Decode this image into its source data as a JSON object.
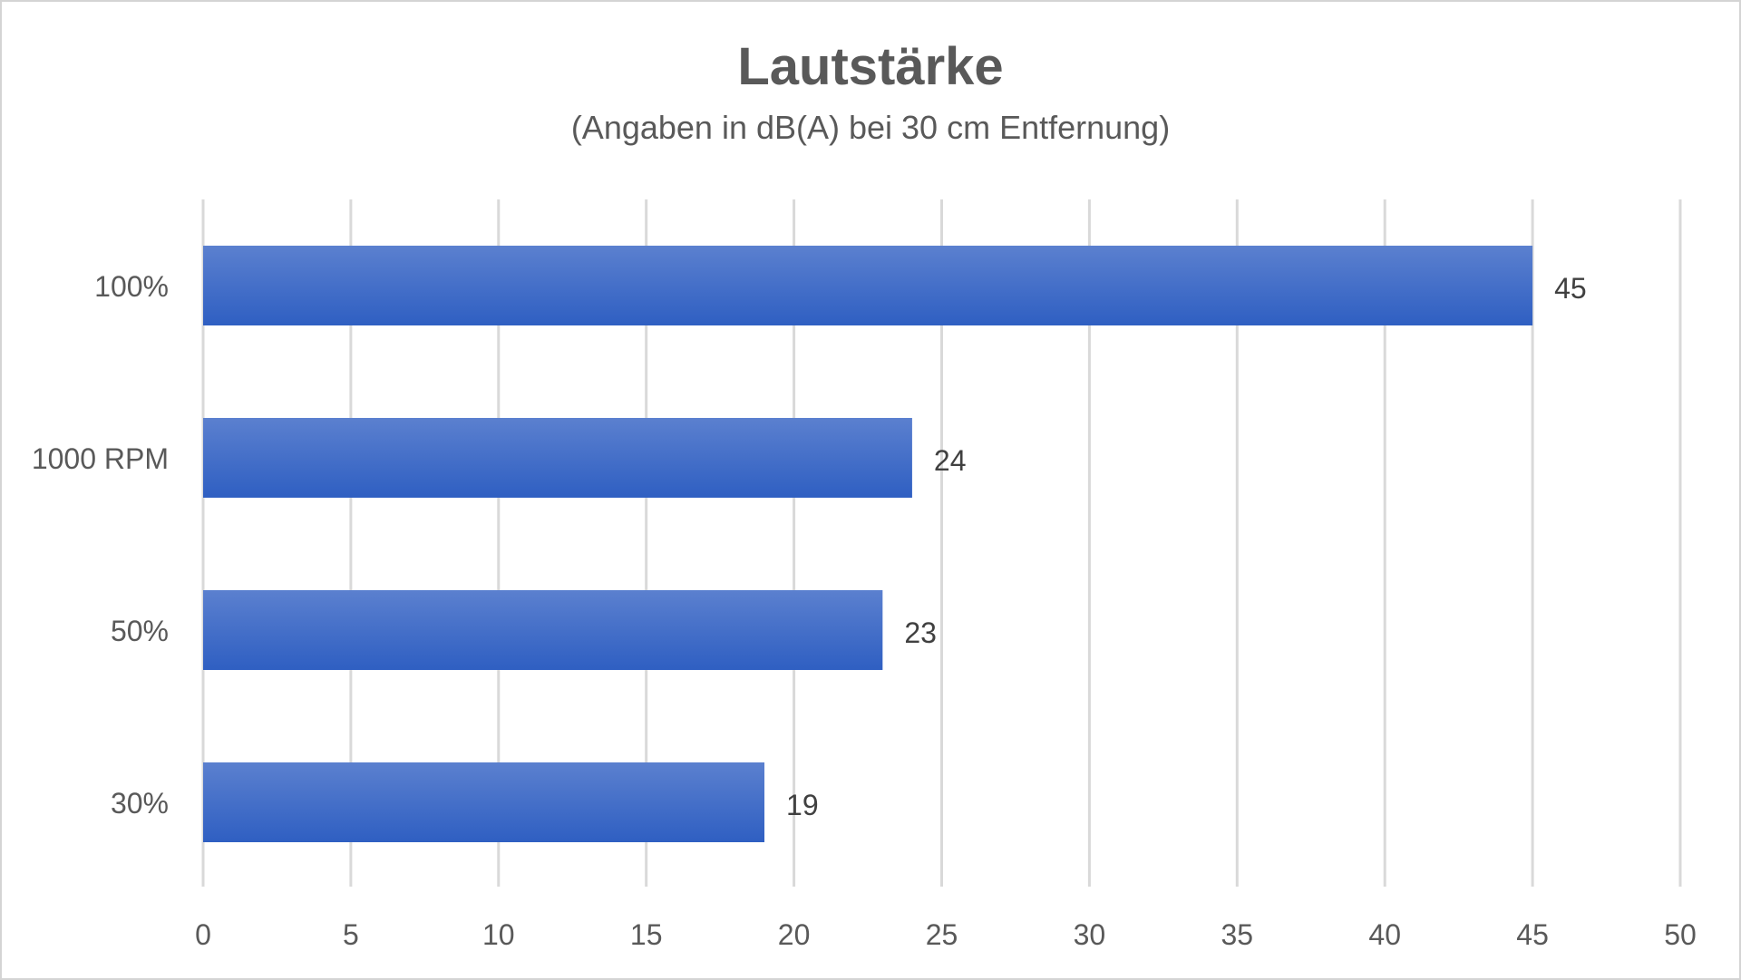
{
  "chart_data": {
    "type": "bar",
    "orientation": "horizontal",
    "title": "Lautstärke",
    "subtitle": "(Angaben in dB(A) bei 30 cm Entfernung)",
    "categories": [
      "100%",
      "1000 RPM",
      "50%",
      "30%"
    ],
    "values": [
      45,
      24,
      23,
      19
    ],
    "data_labels": [
      "45",
      "24",
      "23",
      "19"
    ],
    "xlim": [
      0,
      50
    ],
    "x_ticks": [
      "0",
      "5",
      "10",
      "15",
      "20",
      "25",
      "30",
      "35",
      "40",
      "45",
      "50"
    ],
    "grid": true,
    "legend": "none",
    "bar_color": "#3d6cc9"
  }
}
